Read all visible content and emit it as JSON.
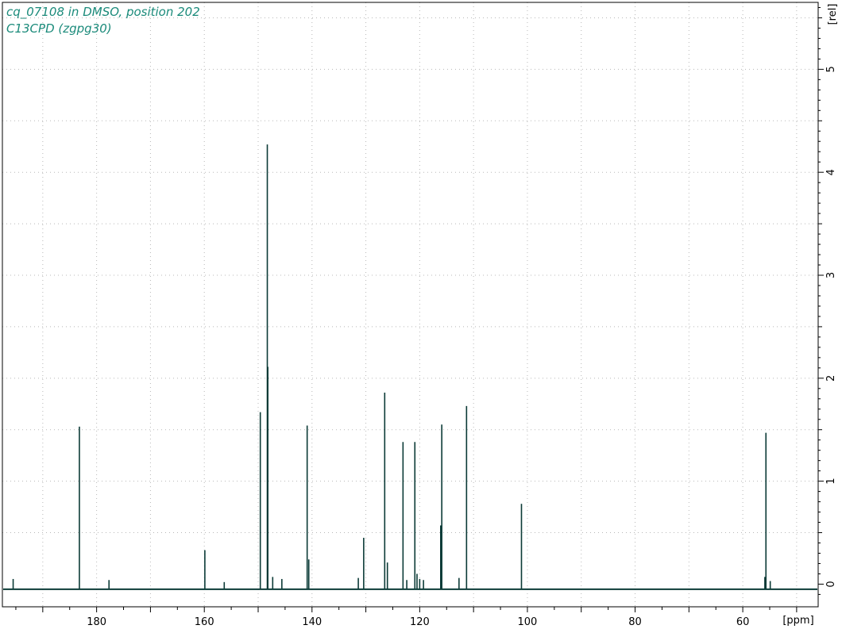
{
  "window": {
    "title_line1": "cq_07108 in DMSO, position 202",
    "title_line2": "C13CPD (zgpg30)"
  },
  "colors": {
    "spectrum": "#0c3b37",
    "title": "#1a8a7a",
    "grid": "#b8b8b8",
    "axis": "#000000"
  },
  "chart_data": {
    "type": "line",
    "title": "cq_07108 in DMSO, position 202",
    "subtitle": "C13CPD (zgpg30)",
    "xlabel": "[ppm]",
    "ylabel": "[rel]",
    "x_reversed": true,
    "xlim": [
      197.5,
      46
    ],
    "ylim": [
      -0.22,
      5.65
    ],
    "x_ticks": [
      180,
      160,
      140,
      120,
      100,
      80,
      60
    ],
    "y_ticks": [
      0,
      1,
      2,
      3,
      4,
      5
    ],
    "grid": true,
    "baseline": -0.05,
    "series": [
      {
        "peaks": [
          {
            "ppm": 195.5,
            "h": 0.05
          },
          {
            "ppm": 183.2,
            "h": 1.53
          },
          {
            "ppm": 177.7,
            "h": 0.04
          },
          {
            "ppm": 159.9,
            "h": 0.33
          },
          {
            "ppm": 156.3,
            "h": 0.02
          },
          {
            "ppm": 149.6,
            "h": 1.67
          },
          {
            "ppm": 148.3,
            "h": 4.27
          },
          {
            "ppm": 148.2,
            "h": 2.11
          },
          {
            "ppm": 147.3,
            "h": 0.07
          },
          {
            "ppm": 145.6,
            "h": 0.05
          },
          {
            "ppm": 140.9,
            "h": 1.54
          },
          {
            "ppm": 140.6,
            "h": 0.24
          },
          {
            "ppm": 131.4,
            "h": 0.06
          },
          {
            "ppm": 130.4,
            "h": 0.45
          },
          {
            "ppm": 126.5,
            "h": 1.86
          },
          {
            "ppm": 126.0,
            "h": 0.21
          },
          {
            "ppm": 123.1,
            "h": 1.38
          },
          {
            "ppm": 122.4,
            "h": 0.04
          },
          {
            "ppm": 120.9,
            "h": 1.38
          },
          {
            "ppm": 120.5,
            "h": 0.1
          },
          {
            "ppm": 120.0,
            "h": 0.05
          },
          {
            "ppm": 119.3,
            "h": 0.04
          },
          {
            "ppm": 116.1,
            "h": 0.57
          },
          {
            "ppm": 115.9,
            "h": 1.55
          },
          {
            "ppm": 112.7,
            "h": 0.06
          },
          {
            "ppm": 111.3,
            "h": 1.73
          },
          {
            "ppm": 101.1,
            "h": 0.78
          },
          {
            "ppm": 55.9,
            "h": 0.07
          },
          {
            "ppm": 55.7,
            "h": 1.47
          },
          {
            "ppm": 54.9,
            "h": 0.03
          }
        ]
      }
    ]
  }
}
